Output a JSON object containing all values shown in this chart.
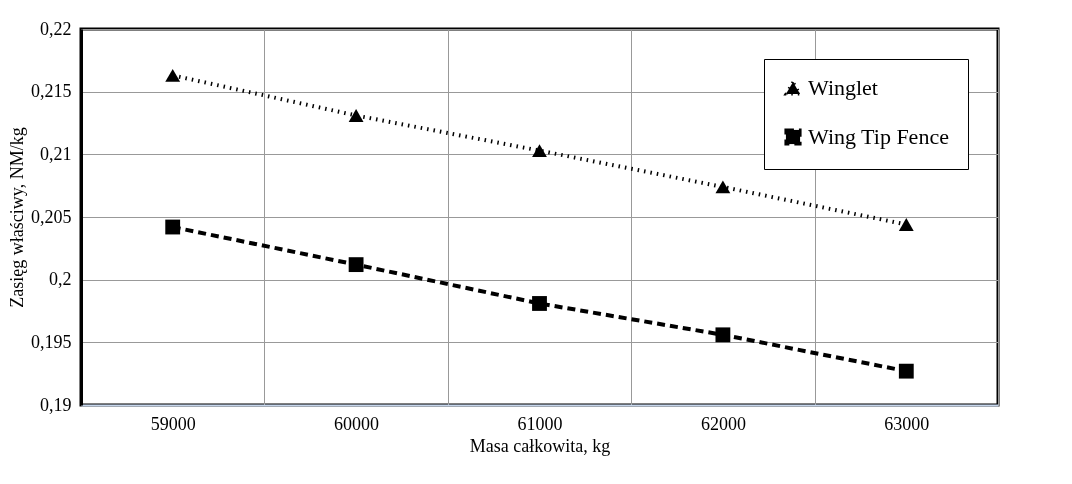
{
  "chart_data": {
    "type": "line",
    "xlabel": "Masa całkowita, kg",
    "ylabel": "Zasięg właściwy, NM/kg",
    "categories": [
      "59000",
      "60000",
      "61000",
      "62000",
      "63000"
    ],
    "series": [
      {
        "name": "Winglet",
        "color": "#000000",
        "marker": "triangle",
        "line_style": "dotted",
        "values": [
          0.2163,
          0.2131,
          0.2103,
          0.2074,
          0.2044
        ]
      },
      {
        "name": "Wing Tip Fence",
        "color": "#000000",
        "marker": "square",
        "line_style": "dashed",
        "values": [
          0.2042,
          0.2012,
          0.1981,
          0.1956,
          0.1927
        ]
      }
    ],
    "ylim": [
      0.19,
      0.22
    ],
    "yticks": [
      {
        "value": 0.19,
        "label": "0,19"
      },
      {
        "value": 0.195,
        "label": "0,195"
      },
      {
        "value": 0.2,
        "label": "0,2"
      },
      {
        "value": 0.205,
        "label": "0,205"
      },
      {
        "value": 0.21,
        "label": "0,21"
      },
      {
        "value": 0.215,
        "label": "0,215"
      },
      {
        "value": 0.22,
        "label": "0,22"
      }
    ],
    "grid": true,
    "legend": "top right"
  }
}
